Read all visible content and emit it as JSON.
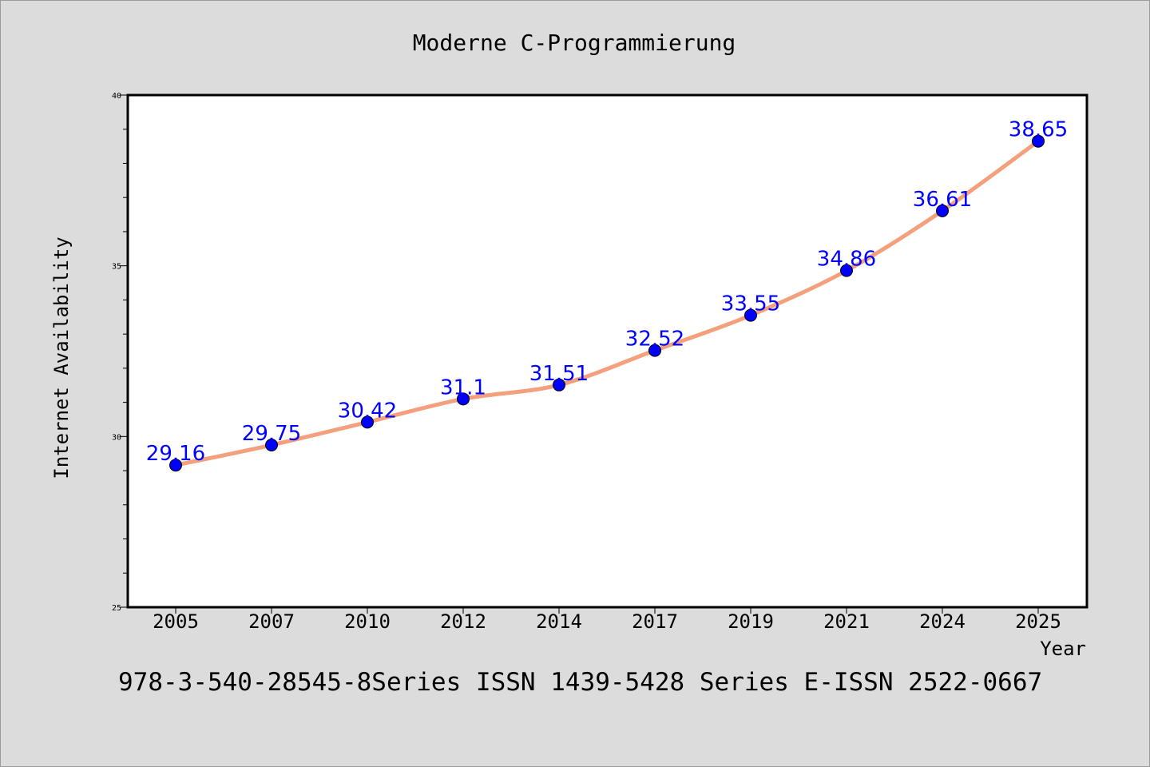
{
  "chart_data": {
    "type": "line",
    "title": "Moderne C-Programmierung",
    "xlabel": "Year",
    "ylabel": "Internet Availability",
    "footer": "978-3-540-28545-8Series ISSN 1439-5428 Series E-ISSN 2522-0667",
    "categories": [
      "2005",
      "2007",
      "2010",
      "2012",
      "2014",
      "2017",
      "2019",
      "2021",
      "2024",
      "2025"
    ],
    "series": [
      {
        "values": [
          29.16,
          29.75,
          30.42,
          31.1,
          31.51,
          32.52,
          33.55,
          34.86,
          36.61,
          38.65
        ],
        "labels": [
          "29.16",
          "29.75",
          "30.42",
          "31.1",
          "31.51",
          "32.52",
          "33.55",
          "34.86",
          "36.61",
          "38.65"
        ]
      }
    ],
    "ylim": [
      25,
      40
    ],
    "yticks": [
      "25",
      "30",
      "35",
      "40"
    ],
    "grid": false,
    "legend": "none",
    "colors": {
      "background": "#dcdcdc",
      "plot_background": "#ffffff",
      "line": "#f4a07c",
      "marker": "#0000ff",
      "data_label": "#0000ff",
      "text": "#000000"
    }
  }
}
